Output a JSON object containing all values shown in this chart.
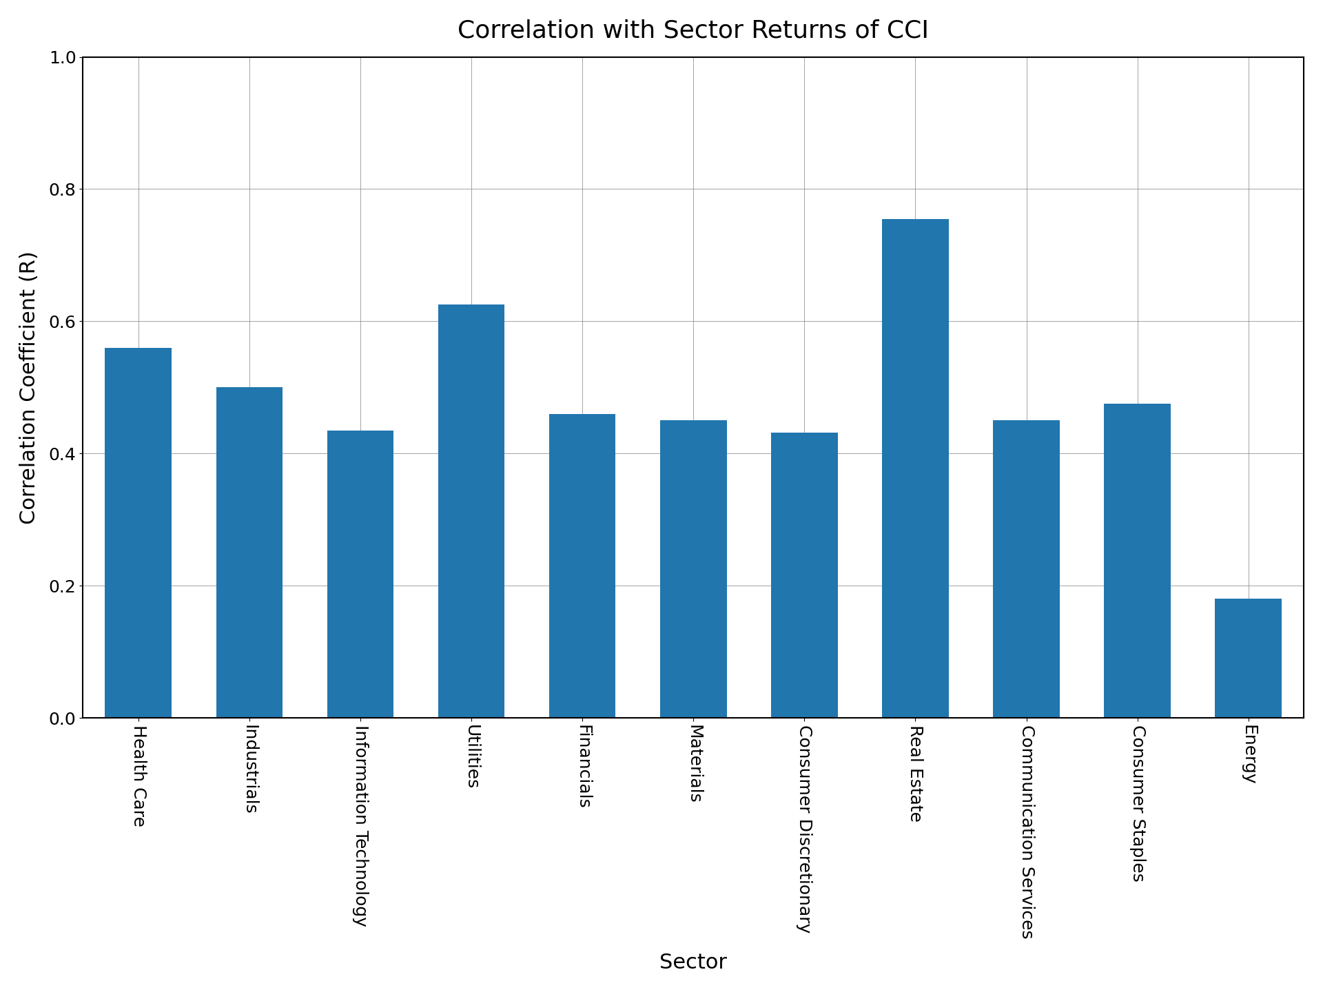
{
  "title": "Correlation with Sector Returns of CCI",
  "xlabel": "Sector",
  "ylabel": "Correlation Coefficient (R)",
  "categories": [
    "Health Care",
    "Industrials",
    "Information Technology",
    "Utilities",
    "Financials",
    "Materials",
    "Consumer Discretionary",
    "Real Estate",
    "Communication Services",
    "Consumer Staples",
    "Energy"
  ],
  "values": [
    0.56,
    0.5,
    0.435,
    0.625,
    0.46,
    0.45,
    0.432,
    0.755,
    0.45,
    0.475,
    0.18
  ],
  "bar_color": "#2176AE",
  "ylim": [
    0.0,
    1.0
  ],
  "yticks": [
    0.0,
    0.2,
    0.4,
    0.6,
    0.8,
    1.0
  ],
  "title_fontsize": 26,
  "label_fontsize": 22,
  "tick_fontsize": 18,
  "background_color": "#ffffff",
  "grid": true,
  "bar_width": 0.6
}
